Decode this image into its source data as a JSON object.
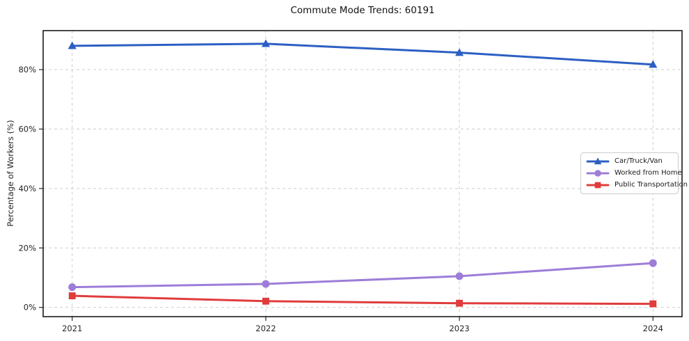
{
  "chart_data": {
    "type": "line",
    "title": "Commute Mode Trends: 60191",
    "xlabel": "",
    "ylabel": "Percentage of Workers (%)",
    "x": [
      2021,
      2022,
      2023,
      2024
    ],
    "x_tick_labels": [
      "2021",
      "2022",
      "2023",
      "2024"
    ],
    "y_ticks": [
      0,
      20,
      40,
      60,
      80
    ],
    "y_tick_labels": [
      "0%",
      "20%",
      "40%",
      "60%",
      "80%"
    ],
    "xlim": [
      2020.85,
      2024.15
    ],
    "ylim": [
      -3.11,
      93.11
    ],
    "grid": true,
    "grid_style": "dashed",
    "legend_position": "center-right",
    "series": [
      {
        "name": "Car/Truck/Van",
        "color": "#2d5fc3",
        "marker": "triangle",
        "values": [
          88.0,
          88.7,
          85.7,
          81.7
        ]
      },
      {
        "name": "Worked from Home",
        "color": "#9d7dd8",
        "marker": "circle",
        "values": [
          6.8,
          7.9,
          10.5,
          14.9
        ]
      },
      {
        "name": "Public Transportation",
        "color": "#e03c3c",
        "marker": "square",
        "values": [
          3.9,
          2.1,
          1.4,
          1.2
        ]
      }
    ]
  },
  "colors": {
    "grid": "#cccccc",
    "spine": "#1a1a1a",
    "tick": "#262626",
    "background": "#ffffff"
  }
}
